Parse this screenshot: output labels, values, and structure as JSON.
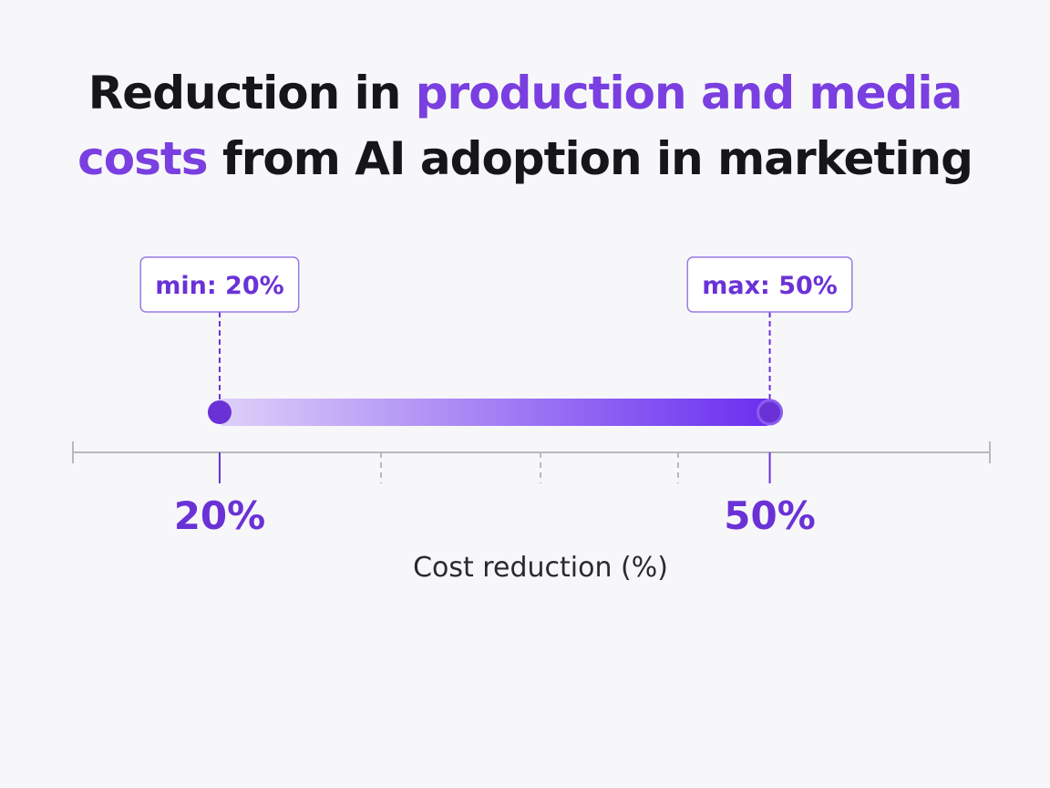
{
  "chart_data": {
    "type": "range",
    "title_parts": [
      {
        "text": "Reduction in ",
        "accent": false
      },
      {
        "text": "production and media",
        "accent": true
      },
      {
        "text": "costs",
        "accent": true
      },
      {
        "text": " from AI adoption in marketing",
        "accent": false
      }
    ],
    "xlabel": "Cost reduction (%)",
    "xlim": [
      12,
      62
    ],
    "range": {
      "min": 20,
      "max": 50
    },
    "callouts": {
      "min": "min: 20%",
      "max": "max: 50%"
    },
    "tick_labels": [
      {
        "value": 20,
        "label": "20%"
      },
      {
        "value": 50,
        "label": "50%"
      }
    ],
    "minor_ticks": [
      20,
      28.8,
      37.5,
      45
    ],
    "colors": {
      "accent": "#7a3fe0",
      "bar_start": "#ddd0f8",
      "bar_end": "#6a2ff0",
      "marker": "#6a32d6",
      "axis": "#b8b8be"
    },
    "grid": false
  }
}
